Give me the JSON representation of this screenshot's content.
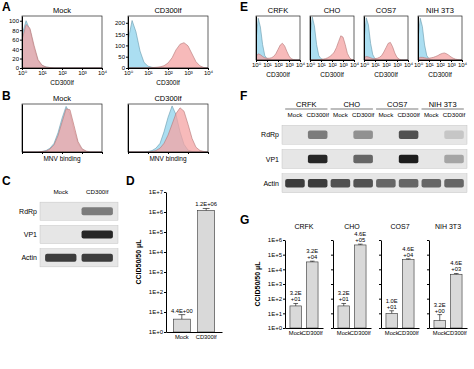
{
  "chart_data": [
    {
      "type": "area",
      "panel_label": "A",
      "title": "Mock",
      "x_label": "CD300lf",
      "log": "x",
      "x": [
        1,
        1.6,
        2.5,
        4,
        6.3,
        10,
        16,
        25,
        40,
        63,
        100,
        160,
        250,
        400,
        630,
        1000,
        1600,
        2500,
        4000,
        6300,
        10000
      ],
      "xlim": [
        1,
        10000
      ],
      "xticks": [
        {
          "value": 1,
          "label": "10⁰"
        },
        {
          "value": 10,
          "label": "10¹"
        },
        {
          "value": 100,
          "label": "10²"
        },
        {
          "value": 1000,
          "label": "10³"
        },
        {
          "value": 10000,
          "label": "10⁴"
        }
      ],
      "ylim": [
        0,
        110
      ],
      "yticks": [
        0,
        20,
        40,
        60,
        80,
        100
      ],
      "series": [
        {
          "color": "#8fd3ec",
          "values": [
            70,
            100,
            80,
            42,
            15,
            5,
            2,
            1,
            0,
            0,
            0,
            0,
            0,
            0,
            0,
            0,
            0,
            0,
            0,
            0,
            0
          ]
        },
        {
          "color": "#f4a3a3",
          "values": [
            60,
            92,
            84,
            48,
            18,
            6,
            2,
            1,
            0,
            0,
            0,
            0,
            0,
            0,
            0,
            0,
            0,
            0,
            0,
            0,
            0
          ]
        }
      ]
    },
    {
      "type": "area",
      "title": "CD300lf",
      "x_label": "CD300lf",
      "log": "x",
      "x": [
        1,
        1.6,
        2.5,
        4,
        6.3,
        10,
        16,
        25,
        40,
        63,
        100,
        160,
        250,
        400,
        630,
        1000,
        1600,
        2500,
        4000,
        6300,
        10000
      ],
      "xlim": [
        1,
        10000
      ],
      "xticks": [
        {
          "value": 1,
          "label": "10⁰"
        },
        {
          "value": 10,
          "label": "10¹"
        },
        {
          "value": 100,
          "label": "10²"
        },
        {
          "value": 1000,
          "label": "10³"
        },
        {
          "value": 10000,
          "label": "10⁴"
        }
      ],
      "ylim": [
        0,
        230
      ],
      "yticks": [
        0,
        50,
        100,
        150,
        200
      ],
      "series": [
        {
          "color": "#8fd3ec",
          "values": [
            120,
            210,
            160,
            75,
            25,
            8,
            3,
            1,
            0,
            0,
            0,
            0,
            0,
            0,
            0,
            0,
            0,
            0,
            0,
            0,
            0
          ]
        },
        {
          "color": "#f4a3a3",
          "values": [
            0,
            0,
            0,
            0,
            0,
            1,
            2,
            3,
            5,
            10,
            22,
            45,
            80,
            105,
            112,
            98,
            62,
            28,
            9,
            2,
            0
          ]
        }
      ]
    },
    {
      "type": "area",
      "panel_label": "B",
      "title": "Mock",
      "x_label": "MNV binding",
      "log": "x",
      "tick_labels": false,
      "x": [
        1,
        1.6,
        2.5,
        4,
        6.3,
        10,
        16,
        25,
        40,
        63,
        100,
        160,
        250,
        400,
        630,
        1000,
        1600,
        2500,
        4000,
        6300,
        10000
      ],
      "xlim": [
        1,
        10000
      ],
      "xticks": [
        1,
        10,
        100,
        1000,
        10000
      ],
      "ylim": [
        0,
        100
      ],
      "series": [
        {
          "color": "#8fd3ec",
          "values": [
            0,
            0,
            0,
            0,
            0,
            1,
            3,
            8,
            18,
            40,
            70,
            95,
            80,
            45,
            18,
            5,
            1,
            0,
            0,
            0,
            0
          ]
        },
        {
          "color": "#f4a3a3",
          "values": [
            0,
            0,
            0,
            0,
            0,
            1,
            2,
            6,
            15,
            34,
            62,
            90,
            88,
            55,
            22,
            7,
            2,
            0,
            0,
            0,
            0
          ]
        }
      ]
    },
    {
      "type": "area",
      "title": "CD300lf",
      "x_label": "MNV binding",
      "log": "x",
      "tick_labels": false,
      "x": [
        1,
        1.6,
        2.5,
        4,
        6.3,
        10,
        16,
        25,
        40,
        63,
        100,
        160,
        250,
        400,
        630,
        1000,
        1600,
        2500,
        4000,
        6300,
        10000
      ],
      "xlim": [
        1,
        10000
      ],
      "xticks": [
        1,
        10,
        100,
        1000,
        10000
      ],
      "ylim": [
        0,
        100
      ],
      "series": [
        {
          "color": "#8fd3ec",
          "values": [
            0,
            0,
            0,
            0,
            0,
            1,
            3,
            8,
            18,
            42,
            72,
            96,
            78,
            42,
            16,
            4,
            1,
            0,
            0,
            0,
            0
          ]
        },
        {
          "color": "#f4a3a3",
          "values": [
            0,
            0,
            0,
            0,
            0,
            0,
            1,
            3,
            8,
            18,
            35,
            58,
            80,
            92,
            85,
            58,
            28,
            10,
            3,
            1,
            0
          ]
        }
      ]
    },
    {
      "type": "blot",
      "panel_label": "C",
      "categories": [
        "Mock",
        "CD300lf"
      ],
      "rows": [
        "RdRp",
        "VP1",
        "Actin"
      ],
      "cells": [
        [
          0,
          0.5
        ],
        [
          0,
          0.9
        ],
        [
          0.8,
          0.8
        ]
      ]
    },
    {
      "type": "bar",
      "panel_label": "D",
      "y_label": "CCID50/50 μL",
      "log": "y",
      "data_labels": true,
      "color": "#d9d9d9",
      "categories": [
        "Mock",
        "CD300lf"
      ],
      "values": [
        4.4,
        1200000
      ],
      "value_labels": [
        "4.4E+00",
        "1.2E+06"
      ],
      "errors": [
        3,
        300000
      ],
      "ylim": [
        1,
        10000000
      ],
      "yticks": [
        {
          "value": 1,
          "label": "1E+0"
        },
        {
          "value": 10,
          "label": "1E+1"
        },
        {
          "value": 100,
          "label": "1E+2"
        },
        {
          "value": 1000,
          "label": "1E+3"
        },
        {
          "value": 10000,
          "label": "1E+4"
        },
        {
          "value": 100000,
          "label": "1E+5"
        },
        {
          "value": 1000000,
          "label": "1E+6"
        },
        {
          "value": 10000000,
          "label": "1E+7"
        }
      ]
    },
    {
      "type": "area",
      "panel_label": "E",
      "title": "CRFK",
      "x_label": "CD300lf",
      "log": "x",
      "tick_labels": "x",
      "x": [
        1,
        1.6,
        2.5,
        4,
        6.3,
        10,
        16,
        25,
        40,
        63,
        100,
        160,
        250,
        400,
        630,
        1000,
        1600,
        2500,
        4000,
        6300,
        10000
      ],
      "xlim": [
        1,
        10000
      ],
      "xticks": [
        {
          "value": 1,
          "label": "10⁰"
        },
        {
          "value": 10,
          "label": "10¹"
        },
        {
          "value": 100,
          "label": "10²"
        },
        {
          "value": 1000,
          "label": "10³"
        },
        {
          "value": 10000,
          "label": "10⁴"
        }
      ],
      "ylim": [
        0,
        100
      ],
      "series": [
        {
          "color": "#8fd3ec",
          "values": [
            45,
            95,
            75,
            35,
            10,
            3,
            1,
            0,
            0,
            0,
            0,
            0,
            0,
            0,
            0,
            0,
            0,
            0,
            0,
            0,
            0
          ]
        },
        {
          "color": "#f4a3a3",
          "values": [
            8,
            14,
            12,
            8,
            5,
            4,
            4,
            5,
            8,
            14,
            24,
            34,
            38,
            32,
            20,
            9,
            3,
            1,
            0,
            0,
            0
          ]
        }
      ]
    },
    {
      "type": "area",
      "title": "CHO",
      "x_label": "CD300lf",
      "log": "x",
      "tick_labels": "x",
      "x": [
        1,
        1.6,
        2.5,
        4,
        6.3,
        10,
        16,
        25,
        40,
        63,
        100,
        160,
        250,
        400,
        630,
        1000,
        1600,
        2500,
        4000,
        6300,
        10000
      ],
      "xlim": [
        1,
        10000
      ],
      "xticks": [
        {
          "value": 1,
          "label": "10⁰"
        },
        {
          "value": 10,
          "label": "10¹"
        },
        {
          "value": 100,
          "label": "10²"
        },
        {
          "value": 1000,
          "label": "10³"
        },
        {
          "value": 10000,
          "label": "10⁴"
        }
      ],
      "ylim": [
        0,
        100
      ],
      "series": [
        {
          "color": "#8fd3ec",
          "values": [
            50,
            98,
            78,
            35,
            10,
            3,
            1,
            0,
            0,
            0,
            0,
            0,
            0,
            0,
            0,
            0,
            0,
            0,
            0,
            0,
            0
          ]
        },
        {
          "color": "#f4a3a3",
          "values": [
            0,
            0,
            0,
            0,
            1,
            1,
            2,
            3,
            5,
            8,
            12,
            18,
            28,
            42,
            55,
            52,
            35,
            15,
            5,
            1,
            0
          ]
        }
      ]
    },
    {
      "type": "area",
      "title": "COS7",
      "x_label": "CD300lf",
      "log": "x",
      "tick_labels": "x",
      "x": [
        1,
        1.6,
        2.5,
        4,
        6.3,
        10,
        16,
        25,
        40,
        63,
        100,
        160,
        250,
        400,
        630,
        1000,
        1600,
        2500,
        4000,
        6300,
        10000
      ],
      "xlim": [
        1,
        10000
      ],
      "xticks": [
        {
          "value": 1,
          "label": "10⁰"
        },
        {
          "value": 10,
          "label": "10¹"
        },
        {
          "value": 100,
          "label": "10²"
        },
        {
          "value": 1000,
          "label": "10³"
        },
        {
          "value": 10000,
          "label": "10⁴"
        }
      ],
      "ylim": [
        0,
        100
      ],
      "series": [
        {
          "color": "#8fd3ec",
          "values": [
            45,
            96,
            80,
            38,
            12,
            3,
            1,
            0,
            0,
            0,
            0,
            0,
            0,
            0,
            0,
            0,
            0,
            0,
            0,
            0,
            0
          ]
        },
        {
          "color": "#f4a3a3",
          "values": [
            5,
            8,
            7,
            5,
            3,
            3,
            4,
            6,
            10,
            18,
            28,
            38,
            40,
            30,
            16,
            6,
            2,
            0,
            0,
            0,
            0
          ]
        }
      ]
    },
    {
      "type": "area",
      "title": "NIH 3T3",
      "x_label": "CD300lf",
      "log": "x",
      "tick_labels": "x",
      "x": [
        1,
        1.6,
        2.5,
        4,
        6.3,
        10,
        16,
        25,
        40,
        63,
        100,
        160,
        250,
        400,
        630,
        1000,
        1600,
        2500,
        4000,
        6300,
        10000
      ],
      "xlim": [
        1,
        10000
      ],
      "xticks": [
        {
          "value": 1,
          "label": "10⁰"
        },
        {
          "value": 10,
          "label": "10¹"
        },
        {
          "value": 100,
          "label": "10²"
        },
        {
          "value": 1000,
          "label": "10³"
        },
        {
          "value": 10000,
          "label": "10⁴"
        }
      ],
      "ylim": [
        0,
        100
      ],
      "series": [
        {
          "color": "#8fd3ec",
          "values": [
            48,
            95,
            76,
            34,
            10,
            3,
            1,
            0,
            0,
            0,
            0,
            0,
            0,
            0,
            0,
            0,
            0,
            0,
            0,
            0,
            0
          ]
        },
        {
          "color": "#f4a3a3",
          "values": [
            3,
            6,
            6,
            5,
            4,
            4,
            5,
            6,
            8,
            10,
            13,
            15,
            16,
            14,
            11,
            7,
            4,
            2,
            1,
            0,
            0
          ]
        }
      ]
    },
    {
      "type": "blot",
      "panel_label": "F",
      "groups": [
        "CRFK",
        "CHO",
        "COS7",
        "NIH 3T3"
      ],
      "categories": [
        "Mock",
        "CD300lf",
        "Mock",
        "CD300lf",
        "Mock",
        "CD300lf",
        "Mock",
        "CD300lf"
      ],
      "rows": [
        "RdRp",
        "VP1",
        "Actin"
      ],
      "cells": [
        [
          0,
          0.5,
          0,
          0.4,
          0,
          0.7,
          0,
          0.15
        ],
        [
          0,
          0.9,
          0,
          0.6,
          0,
          0.95,
          0,
          0.3
        ],
        [
          0.8,
          0.8,
          0.7,
          0.7,
          0.6,
          0.6,
          0.6,
          0.6
        ]
      ]
    },
    {
      "type": "bar",
      "panel_label": "G",
      "title": "CRFK",
      "y_label": "CCID50/50 μL",
      "log": "y",
      "data_labels": true,
      "color": "#d9d9d9",
      "categories": [
        "Mock",
        "CD300lf"
      ],
      "values": [
        32,
        32000
      ],
      "value_labels": [
        "3.2E+01",
        "3.2E+04"
      ],
      "errors": [
        15,
        4000
      ],
      "ylim": [
        1,
        1000000
      ],
      "yticks": [
        {
          "value": 1,
          "label": "1E+0"
        },
        {
          "value": 10,
          "label": "1E+1"
        },
        {
          "value": 100,
          "label": "1E+2"
        },
        {
          "value": 1000,
          "label": "1E+3"
        },
        {
          "value": 10000,
          "label": "1E+4"
        },
        {
          "value": 100000,
          "label": "1E+5"
        },
        {
          "value": 1000000,
          "label": "1E+6"
        }
      ]
    },
    {
      "type": "bar",
      "title": "CHO",
      "log": "y",
      "data_labels": true,
      "tick_labels": "x",
      "color": "#d9d9d9",
      "categories": [
        "Mock",
        "CD300lf"
      ],
      "values": [
        32,
        460000
      ],
      "value_labels": [
        "3.2E+01",
        "4.6E+05"
      ],
      "errors": [
        15,
        60000
      ],
      "ylim": [
        1,
        1000000
      ],
      "yticks": [
        1,
        10,
        100,
        1000,
        10000,
        100000,
        1000000
      ]
    },
    {
      "type": "bar",
      "title": "COS7",
      "log": "y",
      "data_labels": true,
      "tick_labels": "x",
      "color": "#d9d9d9",
      "categories": [
        "Mock",
        "CD300lf"
      ],
      "values": [
        10,
        46000
      ],
      "value_labels": [
        "1.0E+01",
        "4.6E+04"
      ],
      "errors": [
        5,
        6000
      ],
      "ylim": [
        1,
        1000000
      ],
      "yticks": [
        1,
        10,
        100,
        1000,
        10000,
        100000,
        1000000
      ]
    },
    {
      "type": "bar",
      "title": "NIH 3T3",
      "log": "y",
      "data_labels": true,
      "tick_labels": "x",
      "color": "#d9d9d9",
      "categories": [
        "Mock",
        "CD300lf"
      ],
      "values": [
        3.2,
        4600
      ],
      "value_labels": [
        "3.2E+00",
        "4.6E+03"
      ],
      "errors": [
        5,
        600
      ],
      "ylim": [
        1,
        1000000
      ],
      "yticks": [
        1,
        10,
        100,
        1000,
        10000,
        100000,
        1000000
      ]
    }
  ]
}
